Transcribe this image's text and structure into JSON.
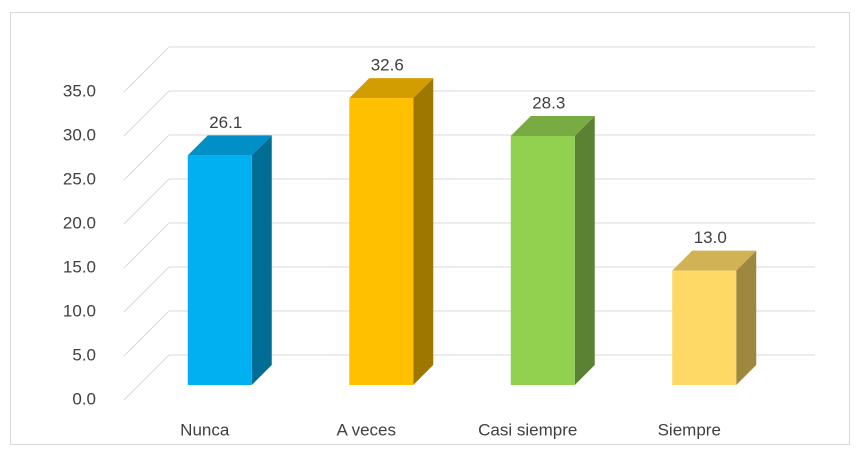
{
  "chart_data": {
    "type": "bar3d",
    "categories": [
      "Nunca",
      "A veces",
      "Casi siempre",
      "Siempre"
    ],
    "values": [
      26.1,
      32.6,
      28.3,
      13.0
    ],
    "value_labels": [
      "26.1",
      "32.6",
      "28.3",
      "13.0"
    ],
    "colors": [
      "#00b0f0",
      "#ffc000",
      "#92d050",
      "#ffd966"
    ],
    "ylim": [
      0,
      35
    ],
    "yticks": [
      {
        "value": 0,
        "label": "0.0"
      },
      {
        "value": 5,
        "label": "5.0"
      },
      {
        "value": 10,
        "label": "10.0"
      },
      {
        "value": 15,
        "label": "15.0"
      },
      {
        "value": 20,
        "label": "20.0"
      },
      {
        "value": 25,
        "label": "25.0"
      },
      {
        "value": 30,
        "label": "30.0"
      },
      {
        "value": 35,
        "label": "35.0"
      }
    ],
    "grid": true
  }
}
